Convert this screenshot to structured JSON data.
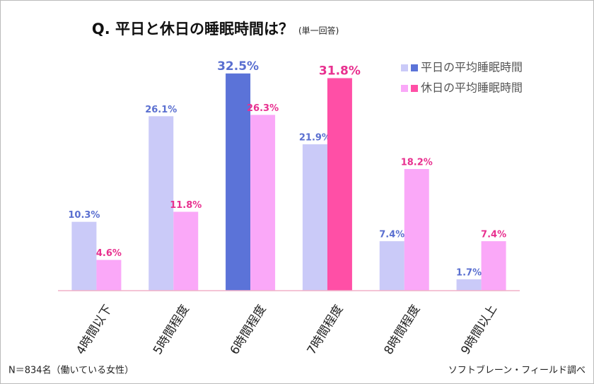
{
  "chart_data": {
    "type": "bar",
    "title": "Q.  平日と休日の睡眠時間は？",
    "subtitle": "(単一回答)",
    "categories": [
      "4時間以下",
      "5時間程度",
      "6時間程度",
      "7時間程度",
      "8時間程度",
      "9時間以上"
    ],
    "series": [
      {
        "name": "平日の平均睡眠時間",
        "color": "#cacaf8",
        "highlight_color": "#5b73d8",
        "label_color": "#5a6fd0",
        "highlight_index": 2,
        "values": [
          10.3,
          26.1,
          32.5,
          21.9,
          7.4,
          1.7
        ],
        "value_labels": [
          "10.3%",
          "26.1%",
          "32.5%",
          "21.9%",
          "7.4%",
          "1.7%"
        ]
      },
      {
        "name": "休日の平均睡眠時間",
        "color": "#faa8f8",
        "highlight_color": "#ff4fa6",
        "label_color": "#e8308f",
        "highlight_index": 3,
        "values": [
          4.6,
          11.8,
          26.3,
          31.8,
          18.2,
          7.4
        ],
        "value_labels": [
          "4.6%",
          "11.8%",
          "26.3%",
          "31.8%",
          "18.2%",
          "7.4%"
        ]
      }
    ],
    "note": "N＝834名（働いている女性）",
    "source": "ソフトブレーン・フィールド調べ"
  }
}
